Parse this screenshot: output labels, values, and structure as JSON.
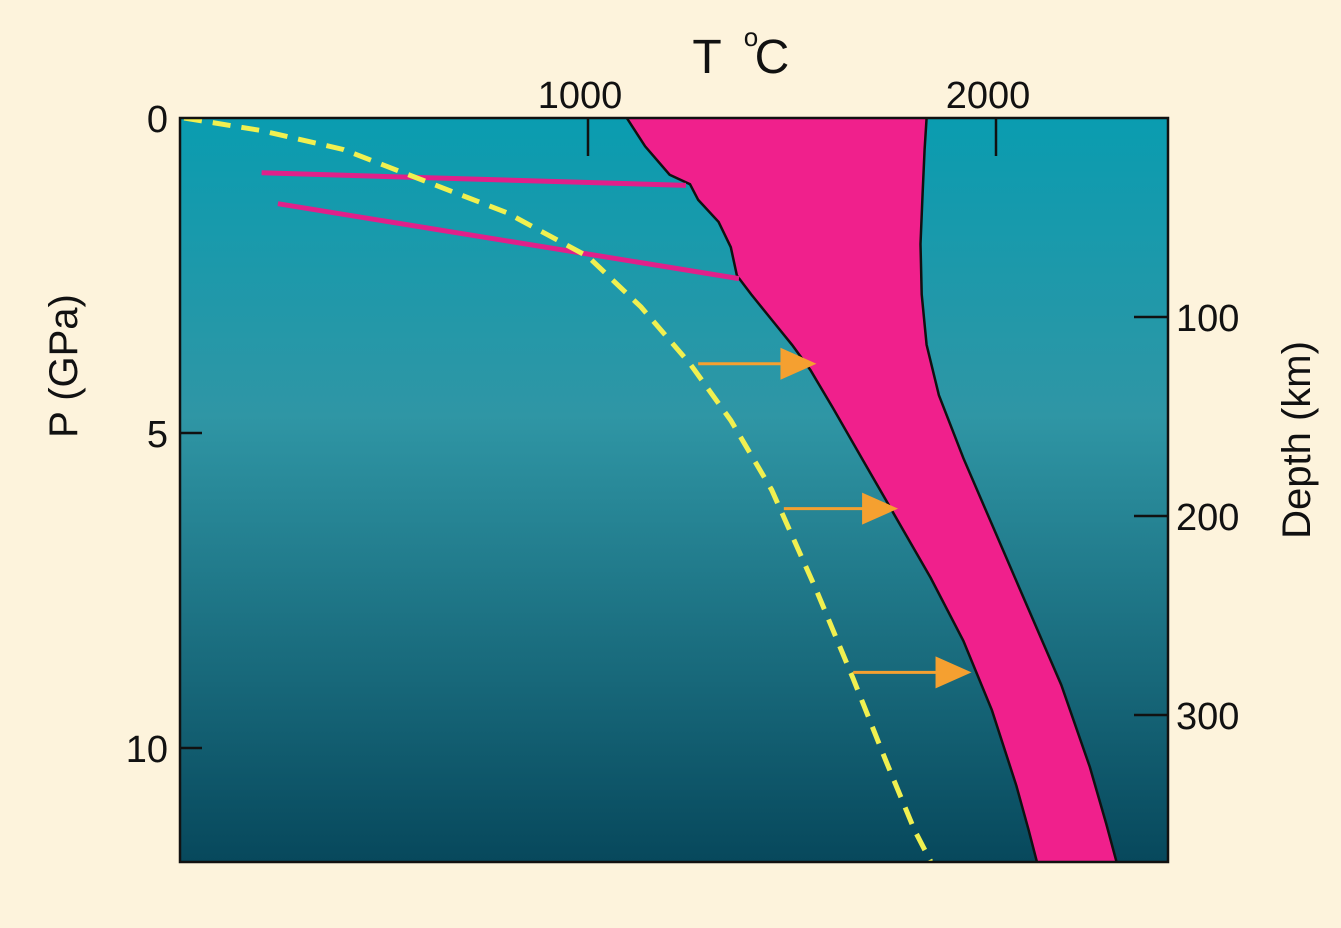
{
  "chart_data": {
    "type": "line",
    "title": "",
    "xlabel_main": "T",
    "xlabel_degree": "o",
    "xlabel_unit": "C",
    "ylabel": "P (GPa)",
    "y2label": "Depth (km)",
    "xlim": [
      0,
      2350
    ],
    "ylim": [
      0,
      11.8
    ],
    "x_ticks": [
      {
        "value": 1000,
        "label": "1000"
      },
      {
        "value": 2000,
        "label": "2000"
      }
    ],
    "y_ticks": [
      {
        "value": 0,
        "label": "0"
      },
      {
        "value": 5,
        "label": "5"
      },
      {
        "value": 10,
        "label": "10"
      }
    ],
    "depth_ticks": [
      {
        "value": 100,
        "label": "100"
      },
      {
        "value": 200,
        "label": "200"
      },
      {
        "value": 300,
        "label": "300"
      }
    ],
    "depth_range": [
      0,
      365
    ],
    "grid": false,
    "colors": {
      "background": "#fdf3dc",
      "plot_top": "#0a9cb0",
      "plot_mid": "#2f96a5",
      "plot_bottom": "#07485c",
      "melt_region": "#f0208c",
      "magenta_lines": "#e0208a",
      "geotherm": "#f0f050",
      "arrows": "#f5a030",
      "outline": "#111111"
    },
    "series": [
      {
        "role": "solidus",
        "values": [
          [
            1095,
            0
          ],
          [
            1140,
            0.45
          ],
          [
            1200,
            0.9
          ],
          [
            1250,
            1.05
          ],
          [
            1270,
            1.3
          ],
          [
            1320,
            1.65
          ],
          [
            1350,
            2.05
          ],
          [
            1365,
            2.5
          ],
          [
            1400,
            2.8
          ],
          [
            1450,
            3.2
          ],
          [
            1500,
            3.6
          ],
          [
            1545,
            4.0
          ],
          [
            1600,
            4.6
          ],
          [
            1680,
            5.5
          ],
          [
            1760,
            6.4
          ],
          [
            1840,
            7.3
          ],
          [
            1920,
            8.3
          ],
          [
            1990,
            9.4
          ],
          [
            2050,
            10.6
          ],
          [
            2080,
            11.3
          ],
          [
            2100,
            11.8
          ]
        ]
      },
      {
        "role": "liquidus",
        "values": [
          [
            1830,
            0
          ],
          [
            1825,
            0.5
          ],
          [
            1820,
            1.2
          ],
          [
            1815,
            2.0
          ],
          [
            1818,
            2.8
          ],
          [
            1830,
            3.6
          ],
          [
            1860,
            4.4
          ],
          [
            1920,
            5.4
          ],
          [
            2000,
            6.6
          ],
          [
            2080,
            7.8
          ],
          [
            2160,
            9.0
          ],
          [
            2230,
            10.3
          ],
          [
            2270,
            11.2
          ],
          [
            2295,
            11.8
          ]
        ]
      },
      {
        "role": "geotherm",
        "dashed": true,
        "values": [
          [
            10,
            0
          ],
          [
            200,
            0.2
          ],
          [
            400,
            0.5
          ],
          [
            600,
            1.0
          ],
          [
            800,
            1.5
          ],
          [
            1000,
            2.2
          ],
          [
            1130,
            3.0
          ],
          [
            1250,
            3.9
          ],
          [
            1350,
            4.8
          ],
          [
            1450,
            5.9
          ],
          [
            1560,
            7.5
          ],
          [
            1650,
            8.9
          ],
          [
            1730,
            10.2
          ],
          [
            1800,
            11.3
          ],
          [
            1840,
            11.8
          ]
        ]
      },
      {
        "role": "magenta-line-upper",
        "values": [
          [
            200,
            0.87
          ],
          [
            1240,
            1.07
          ]
        ]
      },
      {
        "role": "magenta-line-lower",
        "values": [
          [
            240,
            1.36
          ],
          [
            1370,
            2.55
          ]
        ]
      }
    ],
    "arrows": [
      {
        "from": [
          1270,
          3.9
        ],
        "to": [
          1560,
          3.9
        ]
      },
      {
        "from": [
          1480,
          6.2
        ],
        "to": [
          1760,
          6.2
        ]
      },
      {
        "from": [
          1650,
          8.8
        ],
        "to": [
          1940,
          8.8
        ]
      }
    ]
  }
}
